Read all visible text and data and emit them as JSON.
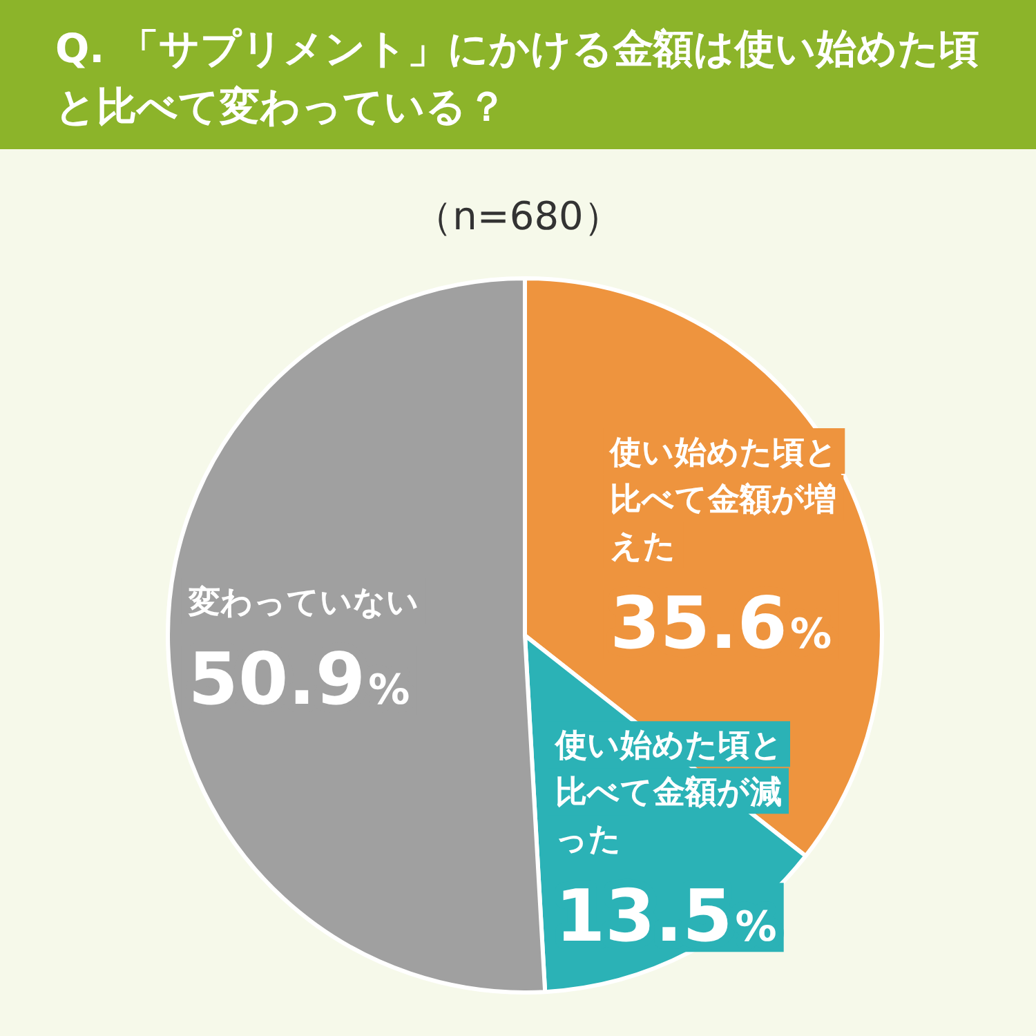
{
  "chart_data": {
    "type": "pie",
    "title": "Q. 「サプリメント」にかける金額は使い始めた頃と比べて変わっている？",
    "subtitle": "（n=680）",
    "categories": [
      "使い始めた頃と比べて金額が増えた",
      "使い始めた頃と比べて金額が減った",
      "変わっていない"
    ],
    "values": [
      35.6,
      13.5,
      50.9
    ],
    "colors": [
      "#ee943e",
      "#2bb2b6",
      "#a0a0a0"
    ],
    "value_labels": [
      "35.6%",
      "13.5%",
      "50.9%"
    ],
    "data_labels": true,
    "legend": false
  }
}
